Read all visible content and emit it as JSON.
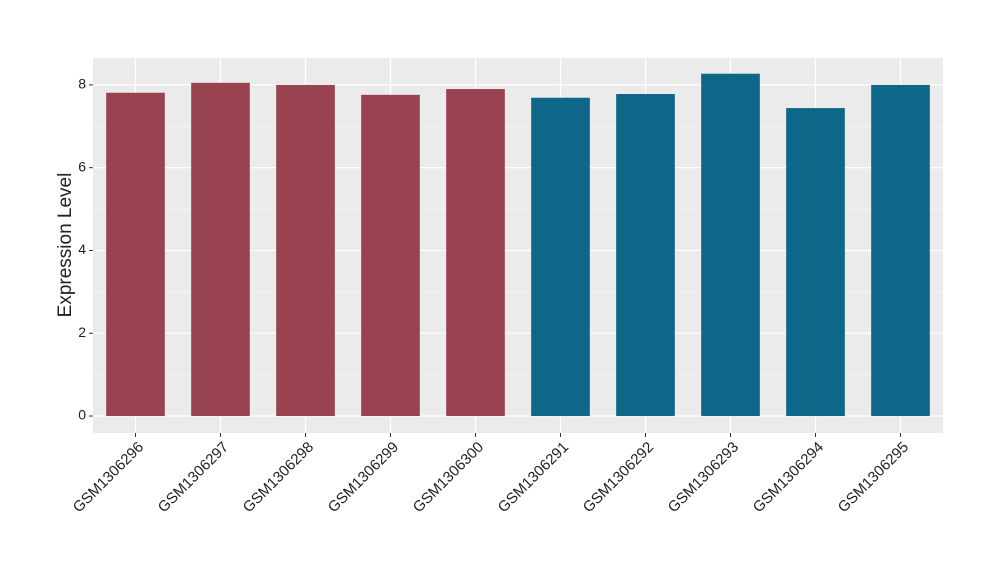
{
  "chart_data": {
    "type": "bar",
    "ylabel": "Expression Level",
    "categories": [
      "GSM1306296",
      "GSM1306297",
      "GSM1306298",
      "GSM1306299",
      "GSM1306300",
      "GSM1306291",
      "GSM1306292",
      "GSM1306293",
      "GSM1306294",
      "GSM1306295"
    ],
    "values": [
      7.81,
      8.05,
      8.0,
      7.76,
      7.9,
      7.69,
      7.78,
      8.27,
      7.44,
      8.0
    ],
    "colors": [
      "#9a4350",
      "#9a4350",
      "#9a4350",
      "#9a4350",
      "#9a4350",
      "#0e6688",
      "#0e6688",
      "#0e6688",
      "#0e6688",
      "#0e6688"
    ],
    "ylim": [
      -0.41,
      8.65
    ],
    "yticks": [
      0,
      2,
      4,
      6,
      8
    ],
    "minor_yticks": [
      1,
      3,
      5,
      7
    ],
    "grid": true
  }
}
